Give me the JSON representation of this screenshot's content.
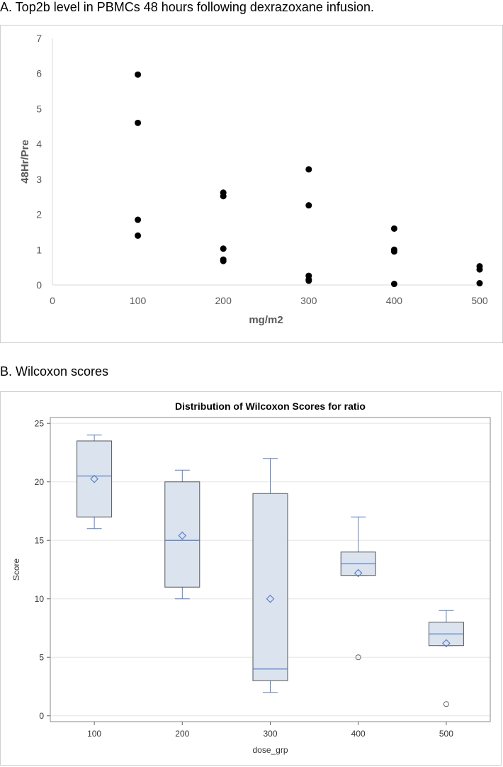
{
  "panels": {
    "a_title": "A. Top2b level in PBMCs 48 hours following dexrazoxane infusion.",
    "b_title": "B. Wilcoxon scores"
  },
  "chart_data": [
    {
      "type": "scatter",
      "title": "",
      "xlabel": "mg/m2",
      "ylabel": "48Hr/Pre",
      "xlim": [
        0,
        500
      ],
      "ylim": [
        0,
        7
      ],
      "xticks": [
        0,
        100,
        200,
        300,
        400,
        500
      ],
      "yticks": [
        0,
        1,
        2,
        3,
        4,
        5,
        6,
        7
      ],
      "marker_color": "#000000",
      "points": [
        {
          "x": 100,
          "y": 5.97
        },
        {
          "x": 100,
          "y": 4.6
        },
        {
          "x": 100,
          "y": 1.85
        },
        {
          "x": 100,
          "y": 1.4
        },
        {
          "x": 200,
          "y": 2.62
        },
        {
          "x": 200,
          "y": 2.52
        },
        {
          "x": 200,
          "y": 1.03
        },
        {
          "x": 200,
          "y": 0.72
        },
        {
          "x": 200,
          "y": 0.68
        },
        {
          "x": 300,
          "y": 3.28
        },
        {
          "x": 300,
          "y": 2.26
        },
        {
          "x": 300,
          "y": 0.26
        },
        {
          "x": 300,
          "y": 0.15
        },
        {
          "x": 300,
          "y": 0.12
        },
        {
          "x": 400,
          "y": 1.6
        },
        {
          "x": 400,
          "y": 1.0
        },
        {
          "x": 400,
          "y": 0.95
        },
        {
          "x": 400,
          "y": 0.03
        },
        {
          "x": 500,
          "y": 0.53
        },
        {
          "x": 500,
          "y": 0.44
        },
        {
          "x": 500,
          "y": 0.05
        }
      ]
    },
    {
      "type": "box",
      "title": "Distribution of Wilcoxon Scores for ratio",
      "xlabel": "dose_grp",
      "ylabel": "Score",
      "ylim": [
        -0.5,
        25.5
      ],
      "yticks": [
        0,
        5,
        10,
        15,
        20,
        25
      ],
      "categories": [
        "100",
        "200",
        "300",
        "400",
        "500"
      ],
      "box_fill": "#dbe3ef",
      "box_edge": "#555555",
      "line_color": "#5b7fc7",
      "boxes": [
        {
          "whisker_low": 16,
          "q1": 17,
          "median": 20.5,
          "q3": 23.5,
          "whisker_high": 24,
          "mean": 20.25,
          "outliers": []
        },
        {
          "whisker_low": 10,
          "q1": 11,
          "median": 15,
          "q3": 20,
          "whisker_high": 21,
          "mean": 15.4,
          "outliers": []
        },
        {
          "whisker_low": 2,
          "q1": 3,
          "median": 4,
          "q3": 19,
          "whisker_high": 22,
          "mean": 10,
          "outliers": []
        },
        {
          "whisker_low": 12,
          "q1": 12,
          "median": 13,
          "q3": 14,
          "whisker_high": 17,
          "mean": 12.2,
          "outliers": [
            5
          ]
        },
        {
          "whisker_low": 6,
          "q1": 6,
          "median": 7,
          "q3": 8,
          "whisker_high": 9,
          "mean": 6.2,
          "outliers": [
            1
          ]
        }
      ]
    }
  ]
}
